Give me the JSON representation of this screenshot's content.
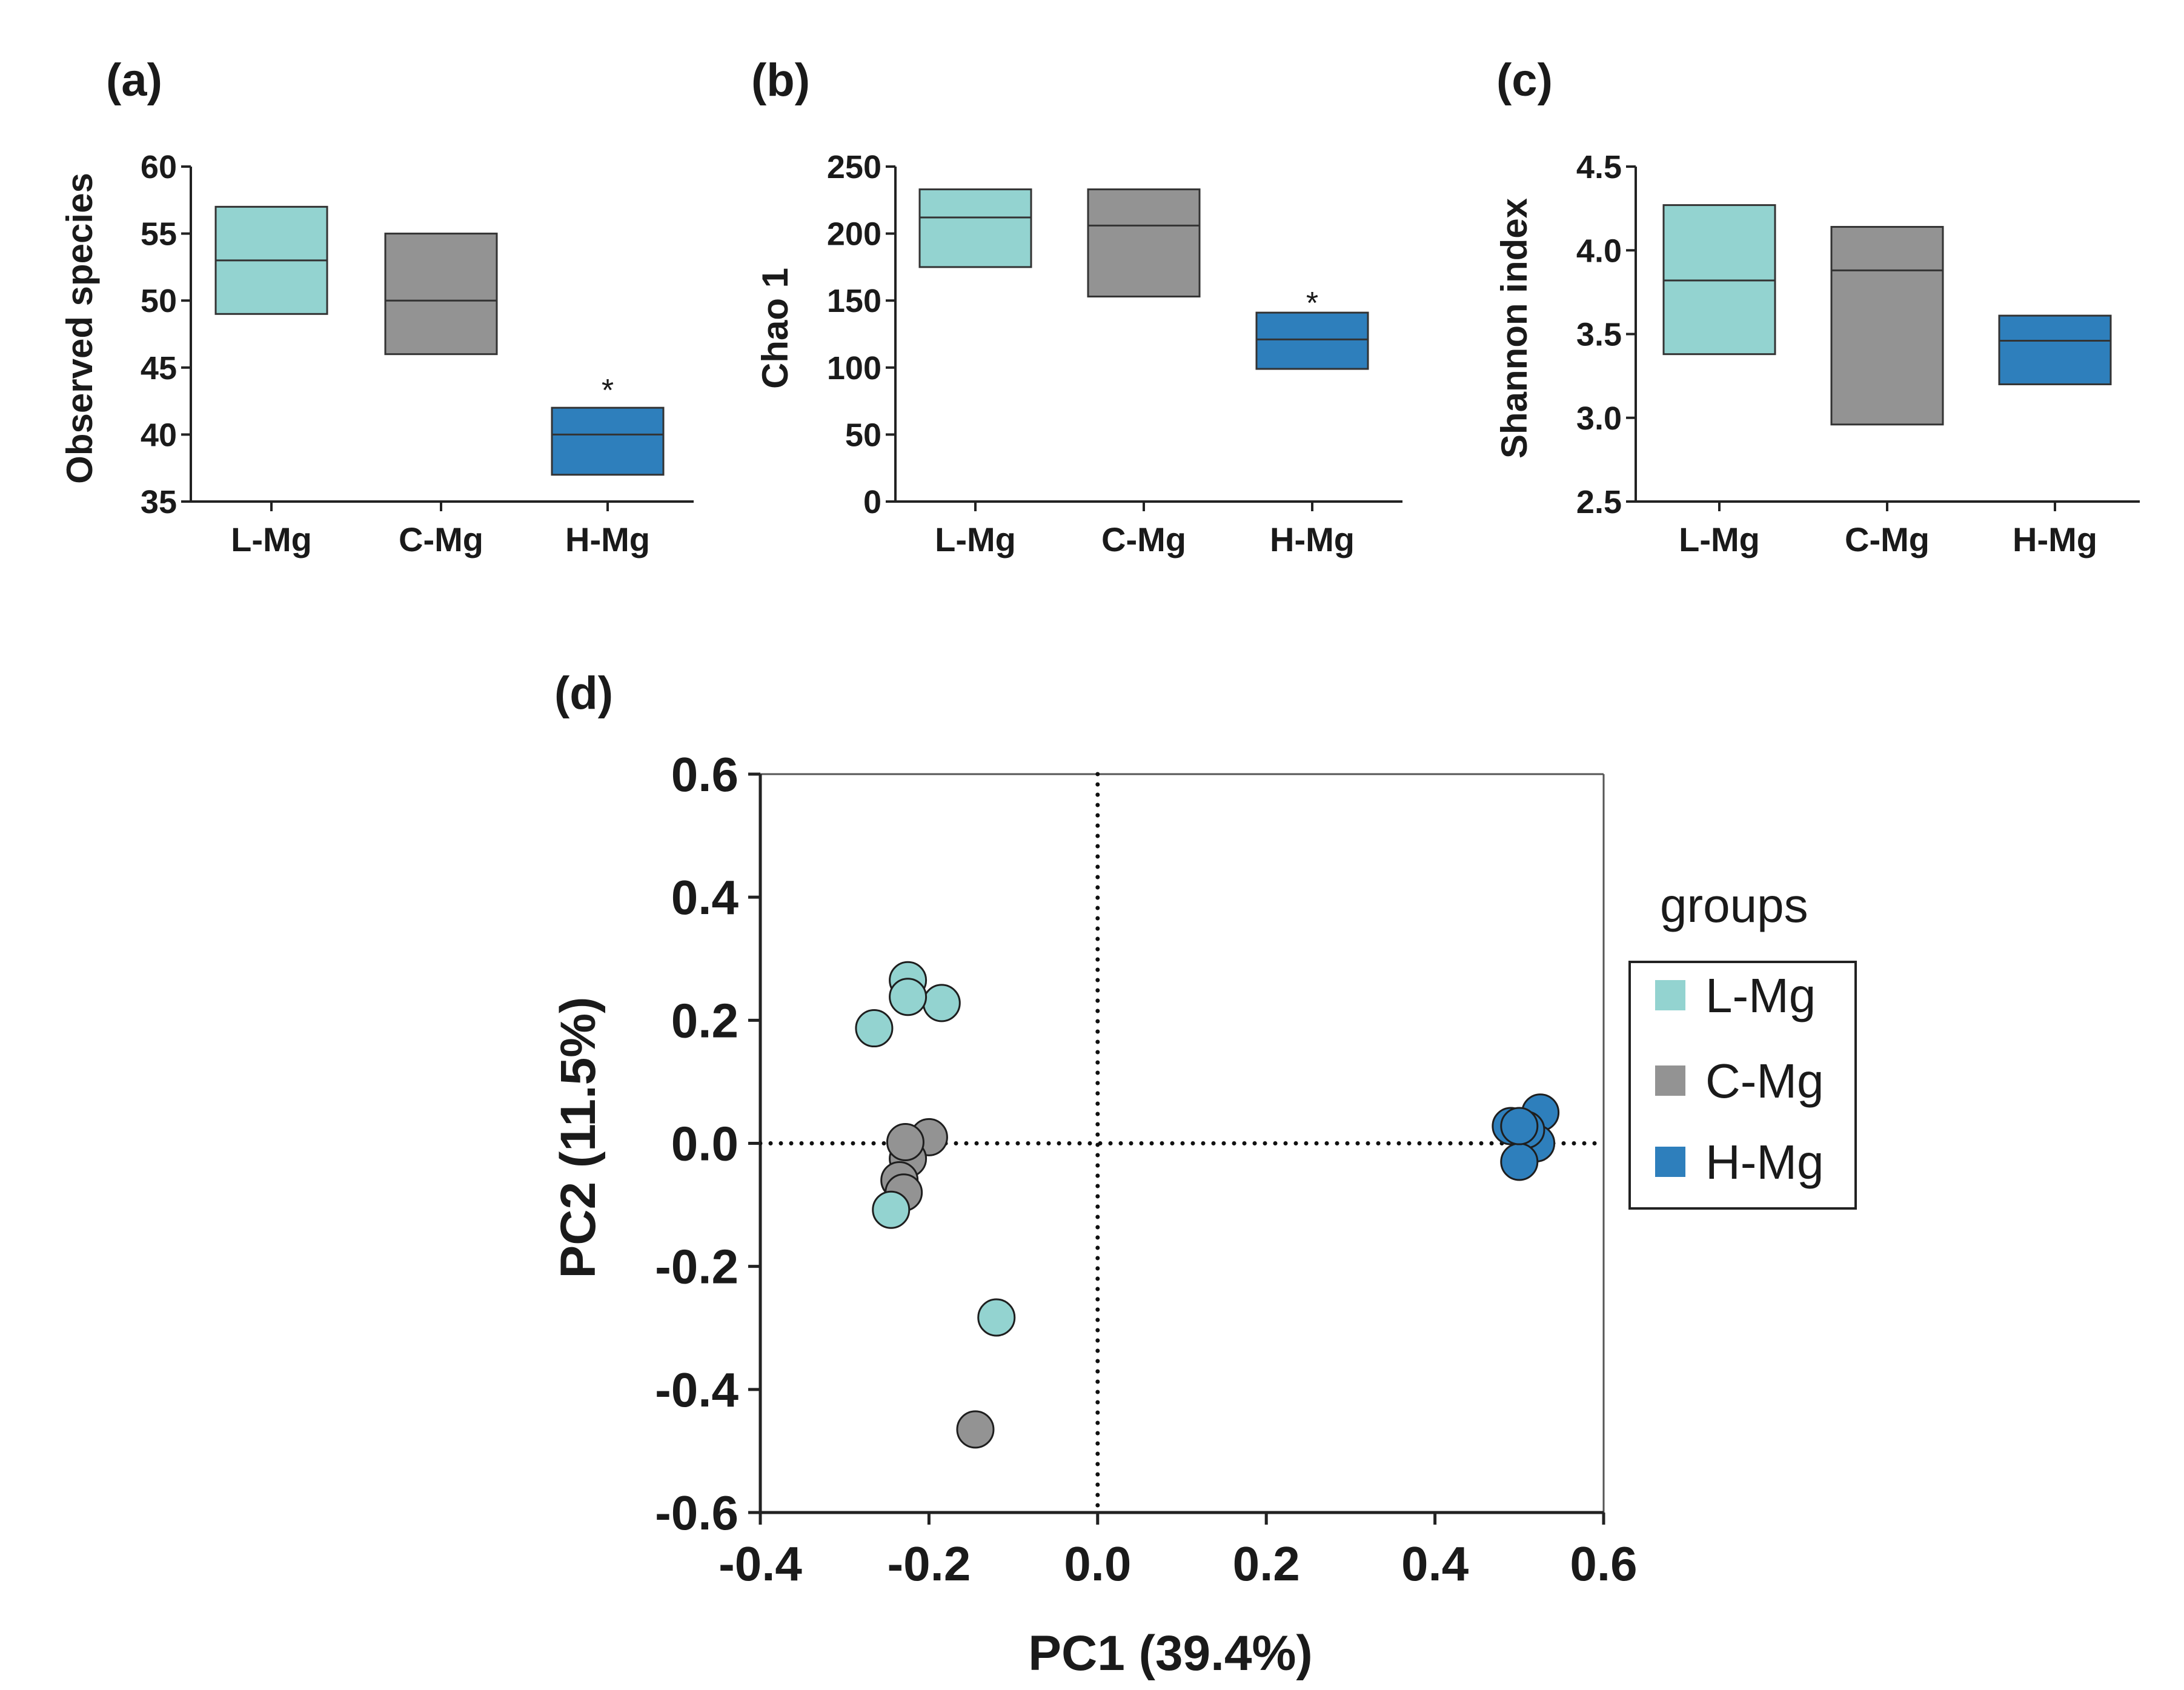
{
  "colors": {
    "L-Mg": "#93d3d0",
    "C-Mg": "#939393",
    "H-Mg": "#2e7fbc",
    "stroke": "#333333",
    "axis": "#222222"
  },
  "chart_data": [
    {
      "id": "a",
      "panel_label": "(a)",
      "type": "box",
      "title": "",
      "xlabel": "",
      "ylabel": "Observed species",
      "categories": [
        "L-Mg",
        "C-Mg",
        "H-Mg"
      ],
      "boxes": [
        {
          "group": "L-Mg",
          "low": 49,
          "median": 53,
          "high": 57
        },
        {
          "group": "C-Mg",
          "low": 46,
          "median": 50,
          "high": 55
        },
        {
          "group": "H-Mg",
          "low": 37,
          "median": 40,
          "high": 42
        }
      ],
      "ylim": [
        35,
        60
      ],
      "yticks": [
        35,
        40,
        45,
        50,
        55,
        60
      ],
      "annotations": [
        {
          "group": "H-Mg",
          "text": "*",
          "y": 43.5
        }
      ]
    },
    {
      "id": "b",
      "panel_label": "(b)",
      "type": "box",
      "title": "",
      "xlabel": "",
      "ylabel": "Chao 1",
      "categories": [
        "L-Mg",
        "C-Mg",
        "H-Mg"
      ],
      "boxes": [
        {
          "group": "L-Mg",
          "low": 175,
          "median": 212,
          "high": 233
        },
        {
          "group": "C-Mg",
          "low": 153,
          "median": 206,
          "high": 233
        },
        {
          "group": "H-Mg",
          "low": 99,
          "median": 121,
          "high": 141
        }
      ],
      "ylim": [
        0,
        250
      ],
      "yticks": [
        0,
        50,
        100,
        150,
        200,
        250
      ],
      "annotations": [
        {
          "group": "H-Mg",
          "text": "*",
          "y": 150
        }
      ]
    },
    {
      "id": "c",
      "panel_label": "(c)",
      "type": "box",
      "title": "",
      "xlabel": "",
      "ylabel": "Shannon index",
      "categories": [
        "L-Mg",
        "C-Mg",
        "H-Mg"
      ],
      "boxes": [
        {
          "group": "L-Mg",
          "low": 3.38,
          "median": 3.82,
          "high": 4.27
        },
        {
          "group": "C-Mg",
          "low": 2.96,
          "median": 3.88,
          "high": 4.14
        },
        {
          "group": "H-Mg",
          "low": 3.2,
          "median": 3.46,
          "high": 3.61
        }
      ],
      "ylim": [
        2.5,
        4.5
      ],
      "yticks": [
        "2.5",
        "3.0",
        "3.5",
        "4.0",
        "4.5"
      ],
      "annotations": []
    },
    {
      "id": "d",
      "panel_label": "(d)",
      "type": "scatter",
      "title": "",
      "xlabel": "PC1 (39.4%)",
      "ylabel": "PC2 (11.5%)",
      "xlim": [
        -0.4,
        0.6
      ],
      "ylim": [
        -0.6,
        0.6
      ],
      "xticks": [
        "-0.4",
        "-0.2",
        "0.0",
        "0.2",
        "0.4",
        "0.6"
      ],
      "yticks": [
        "-0.6",
        "-0.4",
        "-0.2",
        "0.0",
        "0.2",
        "0.4",
        "0.6"
      ],
      "reference_lines": {
        "x": 0,
        "y": 0,
        "style": "dotted"
      },
      "series": [
        {
          "name": "C-Mg",
          "points": [
            [
              -0.2,
              0.01
            ],
            [
              -0.225,
              -0.025
            ],
            [
              -0.235,
              -0.06
            ],
            [
              -0.23,
              -0.08
            ],
            [
              -0.145,
              -0.465
            ],
            [
              -0.228,
              0.002
            ]
          ]
        },
        {
          "name": "L-Mg",
          "points": [
            [
              -0.225,
              0.265
            ],
            [
              -0.185,
              0.228
            ],
            [
              -0.265,
              0.187
            ],
            [
              -0.225,
              0.238
            ],
            [
              -0.245,
              -0.108
            ],
            [
              -0.12,
              -0.283
            ]
          ]
        },
        {
          "name": "H-Mg",
          "points": [
            [
              0.49,
              0.028
            ],
            [
              0.525,
              0.05
            ],
            [
              0.52,
              0.0
            ],
            [
              0.508,
              0.022
            ],
            [
              0.5,
              -0.03
            ],
            [
              0.5,
              0.028
            ]
          ]
        }
      ],
      "legend": {
        "title": "groups",
        "position": "right",
        "entries": [
          "L-Mg",
          "C-Mg",
          "H-Mg"
        ]
      }
    }
  ]
}
